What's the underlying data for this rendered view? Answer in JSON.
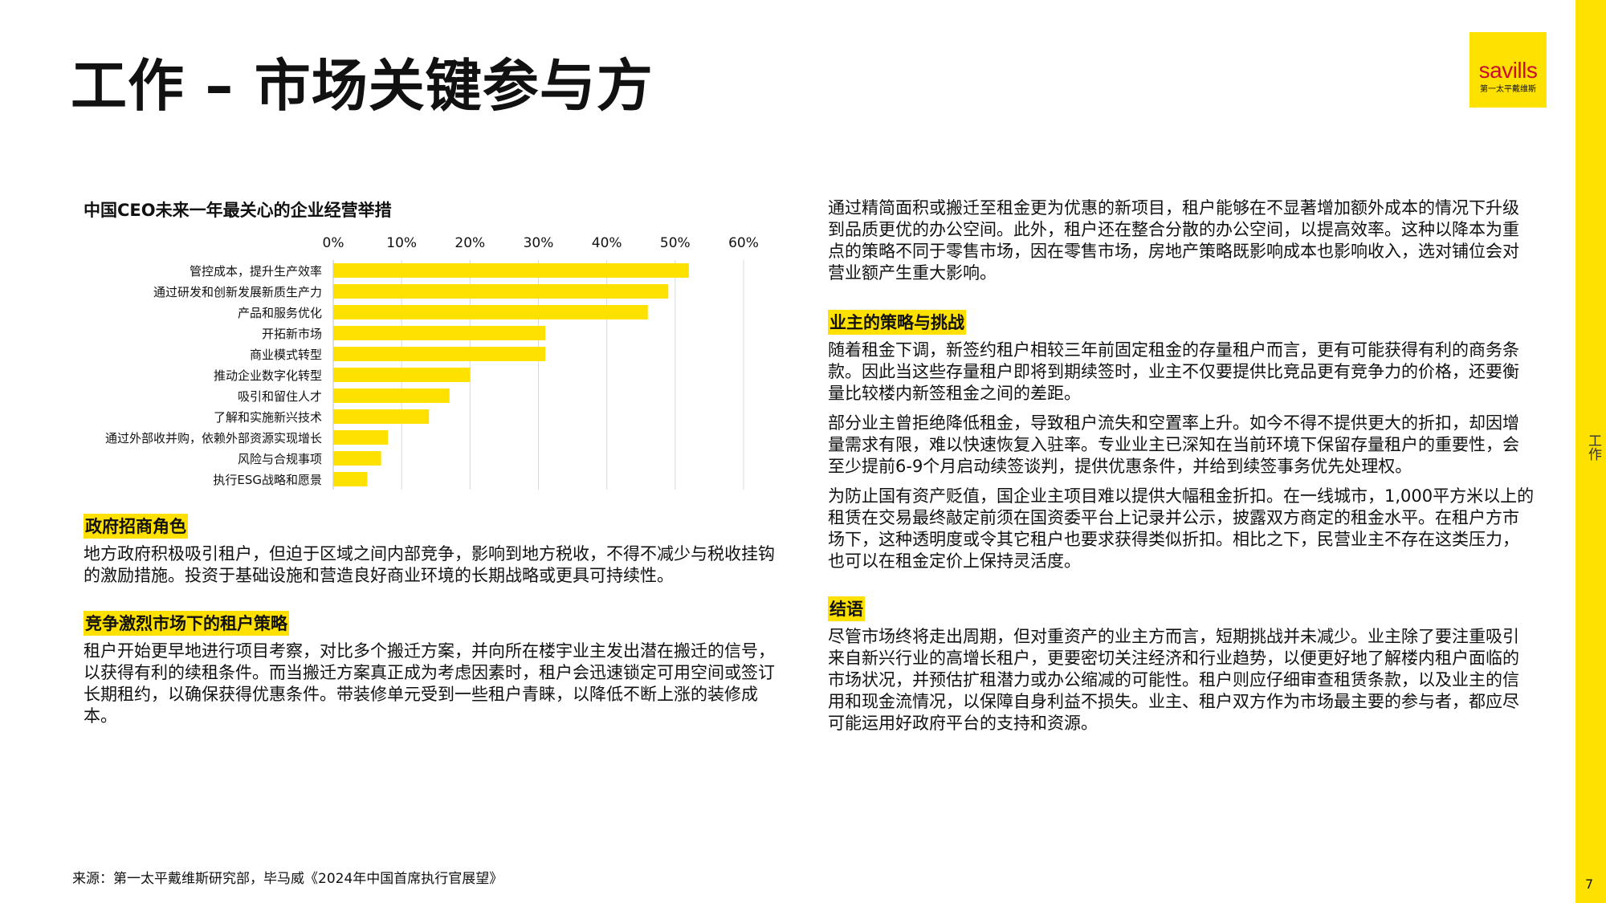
{
  "page": {
    "title": "工作 – 市场关键参与方",
    "side_label": "工作",
    "page_number": "7",
    "accent_color": "#FFE100",
    "logo": {
      "word": "savills",
      "sub": "第一太平戴维斯"
    }
  },
  "chart_title": "中国CEO未来一年最关心的企业经营举措",
  "chart_data": {
    "type": "bar",
    "orientation": "horizontal",
    "title": "中国CEO未来一年最关心的企业经营举措",
    "categories": [
      "管控成本，提升生产效率",
      "通过研发和创新发展新质生产力",
      "产品和服务优化",
      "开拓新市场",
      "商业模式转型",
      "推动企业数字化转型",
      "吸引和留住人才",
      "了解和实施新兴技术",
      "通过外部收并购，依赖外部资源实现增长",
      "风险与合规事项",
      "执行ESG战略和愿景"
    ],
    "values": [
      52,
      49,
      46,
      31,
      31,
      20,
      17,
      14,
      8,
      7,
      5
    ],
    "x_ticks": [
      "0%",
      "10%",
      "20%",
      "30%",
      "40%",
      "50%",
      "60%"
    ],
    "xlim": [
      0,
      60
    ],
    "x_axis_position": "top",
    "grid": true,
    "bar_color": "#FFE100"
  },
  "left_sections": [
    {
      "heading": "政府招商角色",
      "paragraphs": [
        "地方政府积极吸引租户，但迫于区域之间内部竞争，影响到地方税收，不得不减少与税收挂钩的激励措施。投资于基础设施和营造良好商业环境的长期战略或更具可持续性。"
      ]
    },
    {
      "heading": "竞争激烈市场下的租户策略",
      "paragraphs": [
        "租户开始更早地进行项目考察，对比多个搬迁方案，并向所在楼宇业主发出潜在搬迁的信号，以获得有利的续租条件。而当搬迁方案真正成为考虑因素时，租户会迅速锁定可用空间或签订长期租约，以确保获得优惠条件。带装修单元受到一些租户青睐，以降低不断上涨的装修成本。"
      ]
    }
  ],
  "right_intro": "通过精简面积或搬迁至租金更为优惠的新项目，租户能够在不显著增加额外成本的情况下升级到品质更优的办公空间。此外，租户还在整合分散的办公空间，以提高效率。这种以降本为重点的策略不同于零售市场，因在零售市场，房地产策略既影响成本也影响收入，选对铺位会对营业额产生重大影响。",
  "right_sections": [
    {
      "heading": "业主的策略与挑战",
      "paragraphs": [
        "随着租金下调，新签约租户相较三年前固定租金的存量租户而言，更有可能获得有利的商务条款。因此当这些存量租户即将到期续签时，业主不仅要提供比竞品更有竞争力的价格，还要衡量比较楼内新签租金之间的差距。",
        "部分业主曾拒绝降低租金，导致租户流失和空置率上升。如今不得不提供更大的折扣，却因增量需求有限，难以快速恢复入驻率。专业业主已深知在当前环境下保留存量租户的重要性，会至少提前6-9个月启动续签谈判，提供优惠条件，并给到续签事务优先处理权。",
        "为防止国有资产贬值，国企业主项目难以提供大幅租金折扣。在一线城市，1,000平方米以上的租赁在交易最终敲定前须在国资委平台上记录并公示，披露双方商定的租金水平。在租户方市场下，这种透明度或令其它租户也要求获得类似折扣。相比之下，民营业主不存在这类压力，也可以在租金定价上保持灵活度。"
      ]
    },
    {
      "heading": "结语",
      "paragraphs": [
        "尽管市场终将走出周期，但对重资产的业主方而言，短期挑战并未减少。业主除了要注重吸引来自新兴行业的高增长租户，更要密切关注经济和行业趋势，以便更好地了解楼内租户面临的市场状况，并预估扩租潜力或办公缩减的可能性。租户则应仔细审查租赁条款，以及业主的信用和现金流情况，以保障自身利益不损失。业主、租户双方作为市场最主要的参与者，都应尽可能运用好政府平台的支持和资源。"
      ]
    }
  ],
  "source": "来源：第一太平戴维斯研究部，毕马威《2024年中国首席执行官展望》"
}
